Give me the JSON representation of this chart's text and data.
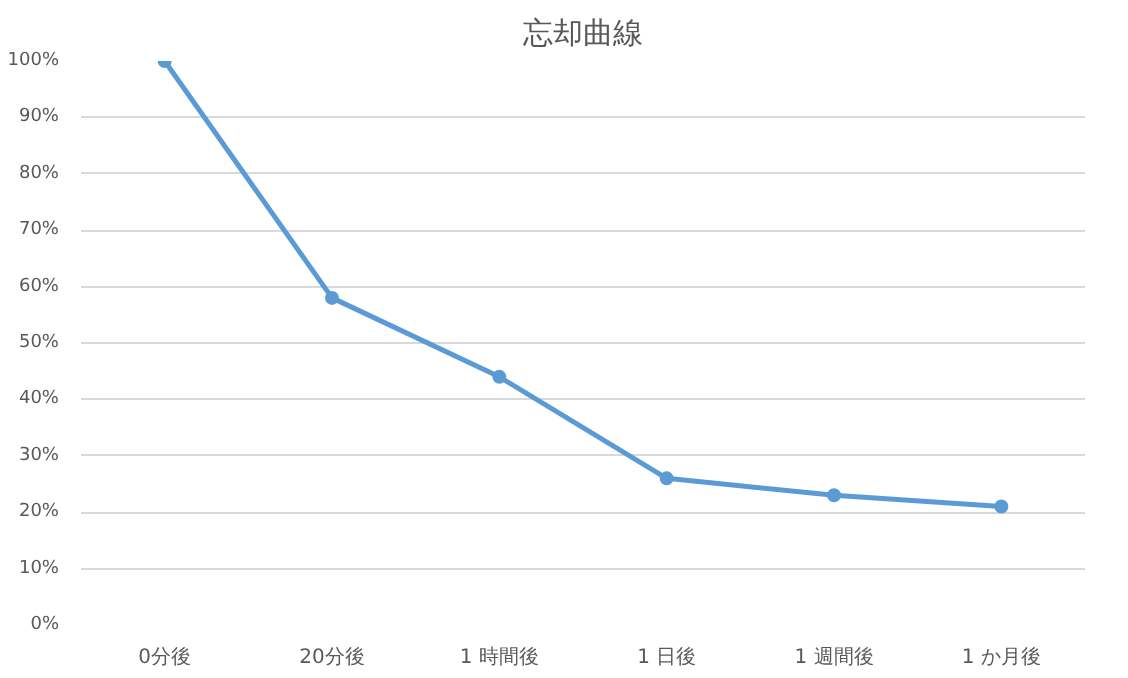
{
  "chart_data": {
    "type": "line",
    "title": "忘却曲線",
    "categories": [
      "0分後",
      "20分後",
      "1 時間後",
      "1 日後",
      "1 週間後",
      "1 か月後"
    ],
    "series": [
      {
        "color": "#5b9bd5",
        "values": [
          100,
          58,
          44,
          26,
          23,
          21
        ]
      }
    ],
    "ylim": [
      0,
      100
    ],
    "yticks": [
      {
        "value": 0,
        "label": "0%"
      },
      {
        "value": 10,
        "label": "10%"
      },
      {
        "value": 20,
        "label": "20%"
      },
      {
        "value": 30,
        "label": "30%"
      },
      {
        "value": 40,
        "label": "40%"
      },
      {
        "value": 50,
        "label": "50%"
      },
      {
        "value": 60,
        "label": "60%"
      },
      {
        "value": 70,
        "label": "70%"
      },
      {
        "value": 80,
        "label": "80%"
      },
      {
        "value": 90,
        "label": "90%"
      },
      {
        "value": 100,
        "label": "100%"
      }
    ],
    "grid": "y",
    "marker": "circle",
    "line_style": "solid"
  }
}
